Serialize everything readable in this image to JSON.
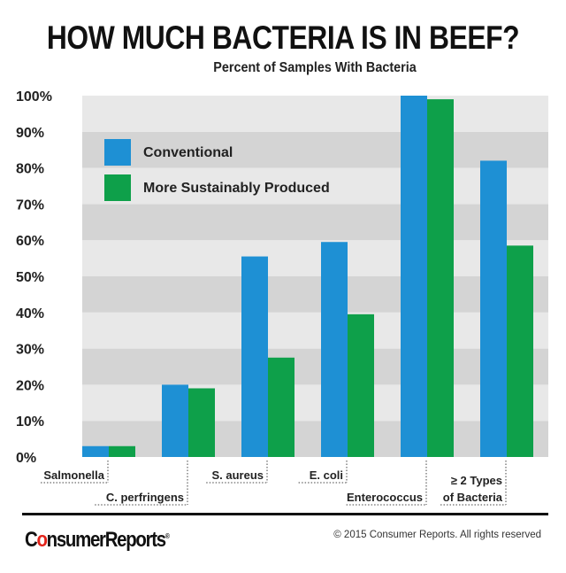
{
  "chart_data": {
    "type": "bar",
    "title": "HOW MUCH BACTERIA IS IN BEEF?",
    "subtitle": "Percent of Samples With Bacteria",
    "categories": [
      [
        "Salmonella"
      ],
      [
        "C. perfringens"
      ],
      [
        "S. aureus"
      ],
      [
        "E. coli"
      ],
      [
        "Enterococcus"
      ],
      [
        "≥ 2 Types",
        "of Bacteria"
      ]
    ],
    "series": [
      {
        "name": "Conventional",
        "color": "#1e90d4",
        "values": [
          3,
          20,
          55.5,
          59.5,
          100,
          82
        ]
      },
      {
        "name": "More Sustainably Produced",
        "color": "#0ea04a",
        "values": [
          3,
          19,
          27.5,
          39.5,
          99,
          58.5
        ]
      }
    ],
    "yticks": [
      "0%",
      "10%",
      "20%",
      "30%",
      "40%",
      "50%",
      "60%",
      "70%",
      "80%",
      "90%",
      "100%"
    ],
    "ylim": [
      0,
      100
    ],
    "legend": "top-left",
    "band_colors": [
      "#d4d4d4",
      "#e8e8e8"
    ]
  },
  "footer": {
    "logo_text": "ConsumerReports",
    "copyright": "© 2015 Consumer Reports. All rights reserved"
  }
}
